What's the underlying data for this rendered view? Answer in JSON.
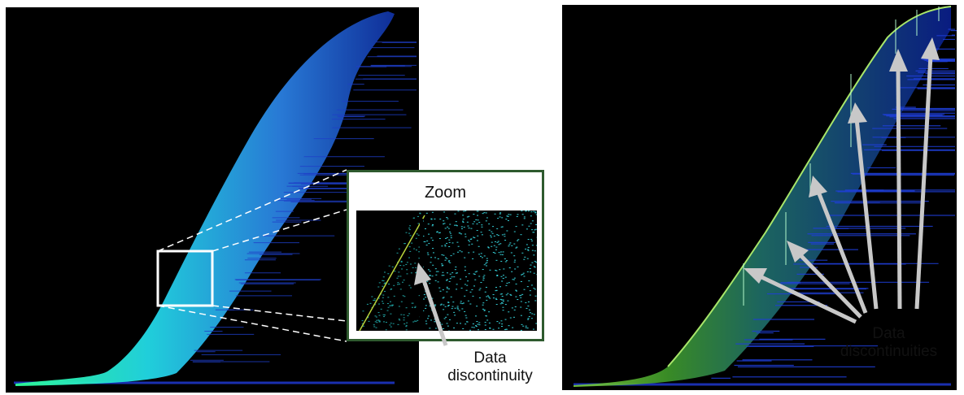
{
  "zoom": {
    "title": "Zoom"
  },
  "labels": {
    "left": {
      "line1": "Data",
      "line2": "discontinuity"
    },
    "right": {
      "line1": "Data",
      "line2": "discontinuities"
    }
  }
}
